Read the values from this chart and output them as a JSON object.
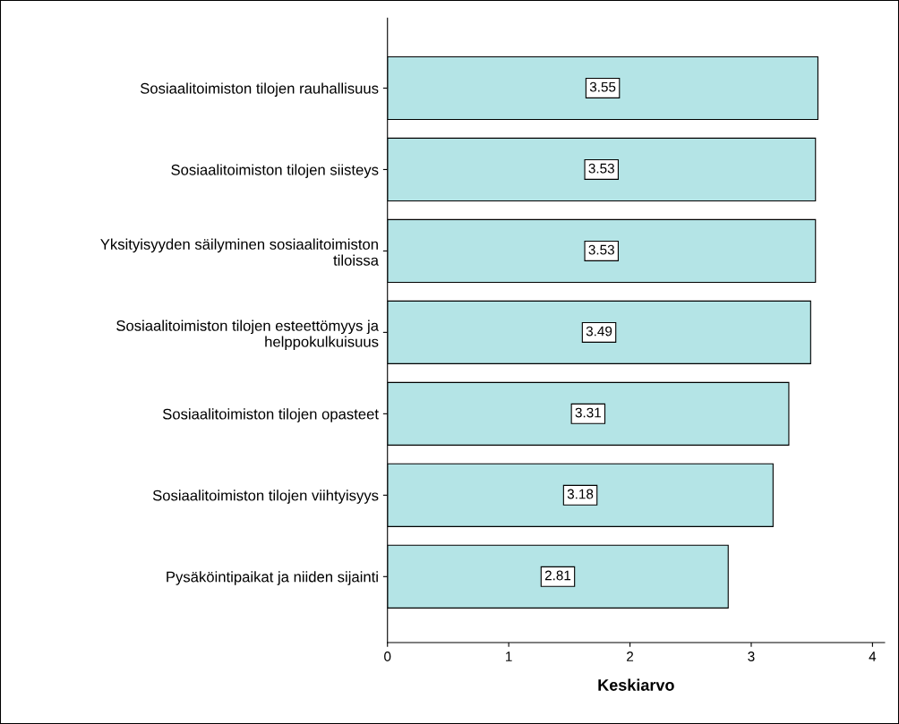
{
  "chart_data": {
    "type": "bar",
    "orientation": "horizontal",
    "xlabel": "Keskiarvo",
    "categories": [
      "Sosiaalitoimiston tilojen rauhallisuus",
      "Sosiaalitoimiston tilojen siisteys",
      "Yksityisyyden säilyminen sosiaalitoimiston\ntiloissa",
      "Sosiaalitoimiston tilojen esteettömyys ja\nhelppokulkuisuus",
      "Sosiaalitoimiston tilojen opasteet",
      "Sosiaalitoimiston tilojen viihtyisyys",
      "Pysäköintipaikat ja niiden sijainti"
    ],
    "values": [
      3.55,
      3.53,
      3.53,
      3.49,
      3.31,
      3.18,
      2.81
    ],
    "color": "#b4e4e6",
    "xlim": [
      0,
      4.1
    ],
    "xticks": [
      0,
      1,
      2,
      3,
      4
    ],
    "data_labels": true,
    "grid": false,
    "legend": false
  }
}
